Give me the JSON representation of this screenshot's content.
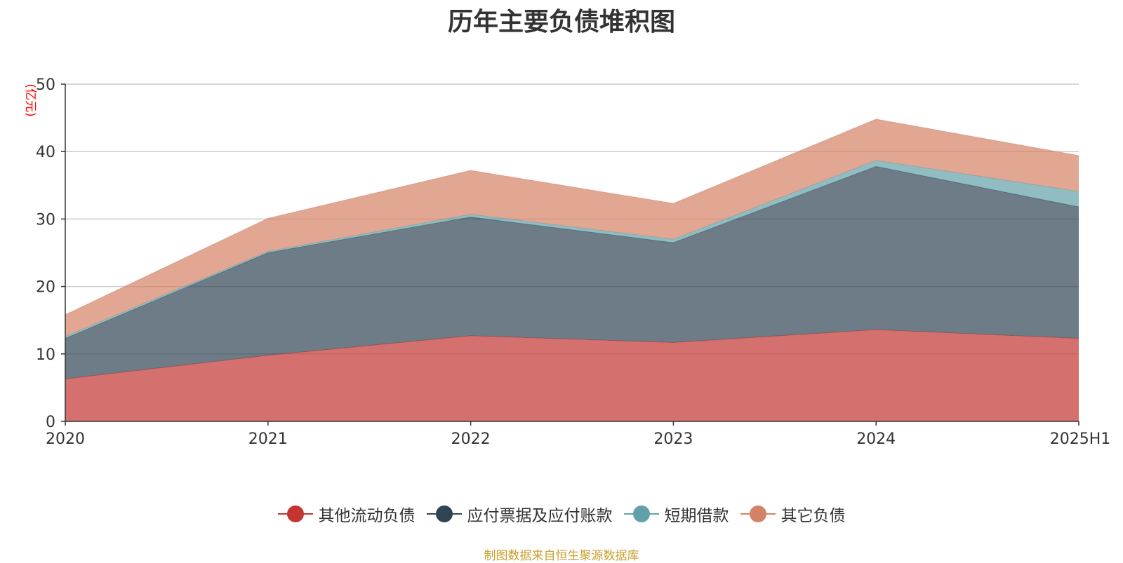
{
  "chart_data": {
    "type": "area",
    "stacked": true,
    "title": "历年主要负债堆积图",
    "unit_label": "(亿元)",
    "categories": [
      "2020",
      "2021",
      "2022",
      "2023",
      "2024",
      "2025H1"
    ],
    "ylim": [
      0,
      50
    ],
    "yticks": [
      0,
      10,
      20,
      30,
      40,
      50
    ],
    "grid": true,
    "legend_position": "bottom",
    "series": [
      {
        "name": "其他流动负债",
        "color": "#c23531",
        "values": [
          6.3,
          9.8,
          12.7,
          11.7,
          13.6,
          12.3
        ]
      },
      {
        "name": "应付票据及应付账款",
        "color": "#2f4554",
        "values": [
          6.0,
          15.2,
          17.6,
          14.8,
          24.2,
          19.5
        ]
      },
      {
        "name": "短期借款",
        "color": "#61a0a8",
        "values": [
          0.3,
          0.2,
          0.4,
          0.5,
          0.9,
          2.3
        ]
      },
      {
        "name": "其它负债",
        "color": "#d48265",
        "values": [
          3.2,
          4.9,
          6.5,
          5.3,
          6.1,
          5.3
        ]
      }
    ]
  },
  "source_note": "制图数据来自恒生聚源数据库"
}
